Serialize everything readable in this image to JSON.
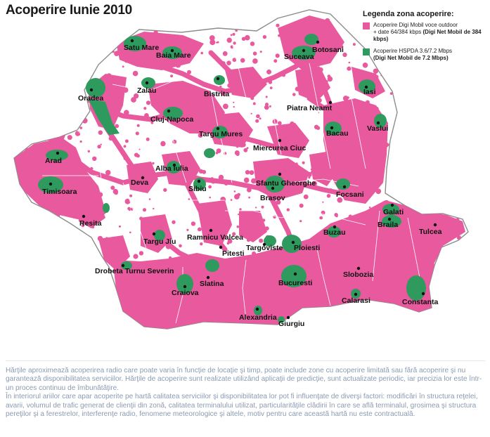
{
  "title": "Acoperire Iunie 2010",
  "colors": {
    "voice_coverage": "#e8599e",
    "hspda_coverage": "#2f9a5d",
    "border": "#8c8c8c",
    "county_lines": "#ffffff"
  },
  "legend": {
    "title": "Legenda zona acoperire:",
    "items": [
      {
        "color": "#e8599e",
        "line1": "Acoperire Digi Mobil voce outdoor",
        "line2_prefix": "+ date 64/384 kbps ",
        "line2_bold": "(Digi Net Mobil de 384 kbps)"
      },
      {
        "color": "#2f9a5d",
        "line1": "Acoperire HSPDA 3.6/7.2 Mbps",
        "line2_prefix": "",
        "line2_bold": "(Digi Net  Mobil de 7.2 Mbps)"
      }
    ]
  },
  "cities": [
    {
      "name": "Satu Mare"
    },
    {
      "name": "Baia Mare"
    },
    {
      "name": "Suceava"
    },
    {
      "name": "Botosani"
    },
    {
      "name": "Iasi"
    },
    {
      "name": "Oradea"
    },
    {
      "name": "Zalau"
    },
    {
      "name": "Bistrita"
    },
    {
      "name": "Piatra Neamt"
    },
    {
      "name": "Cluj-Napoca"
    },
    {
      "name": "Vaslui"
    },
    {
      "name": "Targu Mures"
    },
    {
      "name": "Bacau"
    },
    {
      "name": "Miercurea Ciuc"
    },
    {
      "name": "Arad"
    },
    {
      "name": "Alba Iulia"
    },
    {
      "name": "Deva"
    },
    {
      "name": "Sfantu Gheorghe"
    },
    {
      "name": "Timisoara"
    },
    {
      "name": "Sibiu"
    },
    {
      "name": "Brasov"
    },
    {
      "name": "Focsani"
    },
    {
      "name": "Galati"
    },
    {
      "name": "Resita"
    },
    {
      "name": "Braila"
    },
    {
      "name": "Tulcea"
    },
    {
      "name": "Targu Jiu"
    },
    {
      "name": "Ramnicu Valcea"
    },
    {
      "name": "Buzau"
    },
    {
      "name": "Pitesti"
    },
    {
      "name": "Targoviste"
    },
    {
      "name": "Ploiesti"
    },
    {
      "name": "Drobeta Turnu Severin"
    },
    {
      "name": "Slobozia"
    },
    {
      "name": "Slatina"
    },
    {
      "name": "Bucuresti"
    },
    {
      "name": "Craiova"
    },
    {
      "name": "Calarasi"
    },
    {
      "name": "Constanta"
    },
    {
      "name": "Alexandria"
    },
    {
      "name": "Giurgiu"
    }
  ],
  "footer": {
    "paragraph1": "Hărţile aproximează acoperirea radio care poate varia în funcţie de locaţie şi timp, poate include zone cu acoperire limitată sau fără acoperire şi nu garantează disponibilitatea serviciilor. Hărţile de acoperire sunt realizate utilizând aplicaţii de predicţie, sunt actualizate periodic, iar precizia lor este într-un proces continuu de îmbunătăţire.",
    "paragraph2": "În interiorul ariilor care apar acoperite pe hartă calitatea serviciilor şi disponibilitatea lor pot fi influenţate de diverşi factori: modificări în structura reţelei, avarii, volumul de trafic generat de clienţii din zonă, calitatea terminalului utilizat, particularităţile clădirii în care se află terminalul, grosimea şi structura pereţilor şi a ferestrelor, interferenţe radio, fenomene meteorologice şi altele, motiv pentru care această hartă nu este contractuală."
  }
}
